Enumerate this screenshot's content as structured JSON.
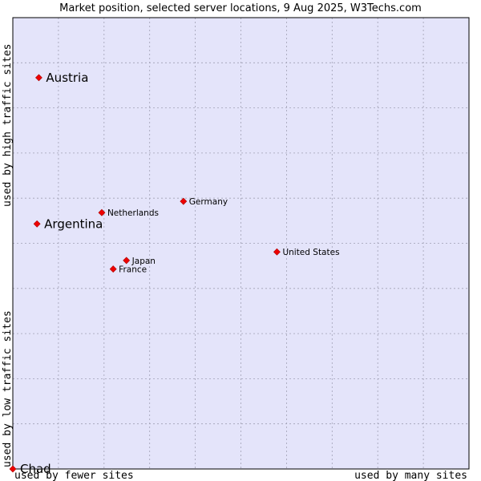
{
  "chart_data": {
    "type": "scatter",
    "title": "Market position, selected server locations, 9 Aug 2025, W3Techs.com",
    "xlabel_left": "used by fewer sites",
    "xlabel_right": "used by many sites",
    "ylabel_bottom": "used by low traffic sites",
    "ylabel_top": "used by high traffic sites",
    "xlim": [
      0,
      100
    ],
    "ylim": [
      0,
      100
    ],
    "grid": true,
    "colors": {
      "plot_background": "#e4e4fa",
      "grid": "#a0a0b4",
      "marker": "#ee0000",
      "marker_edge": "#aa0000"
    },
    "points": [
      {
        "name": "Austria",
        "x": 5.7,
        "y": 86.7,
        "emphasis": true
      },
      {
        "name": "Argentina",
        "x": 5.3,
        "y": 54.3,
        "emphasis": true
      },
      {
        "name": "Chad",
        "x": 0.0,
        "y": 0.0,
        "emphasis": true
      },
      {
        "name": "Netherlands",
        "x": 19.5,
        "y": 56.8,
        "emphasis": false
      },
      {
        "name": "Germany",
        "x": 37.4,
        "y": 59.3,
        "emphasis": false
      },
      {
        "name": "United States",
        "x": 57.9,
        "y": 48.1,
        "emphasis": false
      },
      {
        "name": "Japan",
        "x": 24.9,
        "y": 46.2,
        "emphasis": false
      },
      {
        "name": "France",
        "x": 22.0,
        "y": 44.3,
        "emphasis": false
      }
    ]
  }
}
